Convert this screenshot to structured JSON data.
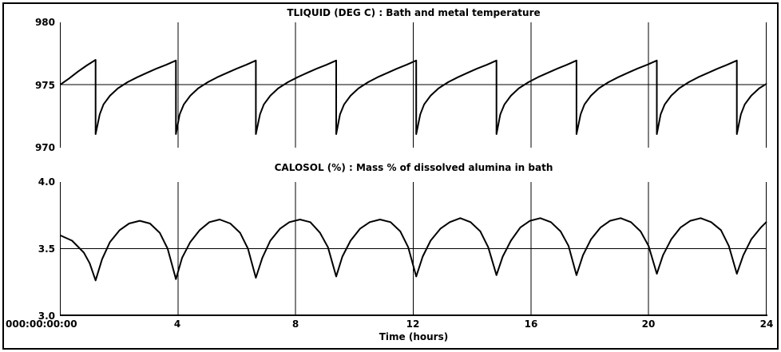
{
  "window": {
    "background": "#ffffff",
    "border_color": "#000000",
    "line_color": "#000000"
  },
  "x_axis": {
    "label": "Time (hours)",
    "origin_label": "000:00:00:00",
    "tick_labels": [
      "4",
      "8",
      "12",
      "16",
      "20",
      "24"
    ],
    "min": 0,
    "max": 24
  },
  "chart_data": [
    {
      "type": "line",
      "title": "TLIQUID (DEG C) : Bath and metal temperature",
      "xlabel": "",
      "ylabel": "TLIQUID (DEG C)",
      "xlim": [
        0,
        24
      ],
      "ylim": [
        970,
        980
      ],
      "yticks": [
        970,
        975,
        980
      ],
      "ytick_labels": [
        "980",
        "975",
        "970"
      ],
      "xticks": [
        4,
        8,
        12,
        16,
        20,
        24
      ],
      "grid_y": 975,
      "baseline": false,
      "legend": "none",
      "points": [
        [
          0,
          975
        ],
        [
          0.3,
          975.5
        ],
        [
          0.6,
          976.05
        ],
        [
          0.9,
          976.55
        ],
        [
          1.2,
          977
        ],
        [
          1.2,
          971
        ],
        [
          1.34,
          972.6
        ],
        [
          1.47,
          973.4
        ],
        [
          1.69,
          974.1
        ],
        [
          1.96,
          974.7
        ],
        [
          2.29,
          975.2
        ],
        [
          2.62,
          975.6
        ],
        [
          2.94,
          975.95
        ],
        [
          3.27,
          976.3
        ],
        [
          3.6,
          976.6
        ],
        [
          3.93,
          976.95
        ],
        [
          3.93,
          971
        ],
        [
          4.06,
          972.6
        ],
        [
          4.2,
          973.4
        ],
        [
          4.42,
          974.1
        ],
        [
          4.69,
          974.7
        ],
        [
          5.02,
          975.2
        ],
        [
          5.34,
          975.6
        ],
        [
          5.67,
          975.95
        ],
        [
          6,
          976.3
        ],
        [
          6.32,
          976.6
        ],
        [
          6.65,
          976.95
        ],
        [
          6.65,
          971
        ],
        [
          6.79,
          972.6
        ],
        [
          6.92,
          973.4
        ],
        [
          7.14,
          974.1
        ],
        [
          7.41,
          974.7
        ],
        [
          7.74,
          975.2
        ],
        [
          8.07,
          975.6
        ],
        [
          8.39,
          975.95
        ],
        [
          8.72,
          976.3
        ],
        [
          9.05,
          976.6
        ],
        [
          9.38,
          976.95
        ],
        [
          9.38,
          971
        ],
        [
          9.51,
          972.6
        ],
        [
          9.65,
          973.4
        ],
        [
          9.87,
          974.1
        ],
        [
          10.14,
          974.7
        ],
        [
          10.47,
          975.2
        ],
        [
          10.79,
          975.6
        ],
        [
          11.12,
          975.95
        ],
        [
          11.45,
          976.3
        ],
        [
          11.77,
          976.6
        ],
        [
          12.1,
          976.95
        ],
        [
          12.1,
          971
        ],
        [
          12.24,
          972.6
        ],
        [
          12.37,
          973.4
        ],
        [
          12.59,
          974.1
        ],
        [
          12.86,
          974.7
        ],
        [
          13.19,
          975.2
        ],
        [
          13.52,
          975.6
        ],
        [
          13.84,
          975.95
        ],
        [
          14.17,
          976.3
        ],
        [
          14.5,
          976.6
        ],
        [
          14.83,
          976.95
        ],
        [
          14.83,
          971
        ],
        [
          14.96,
          972.6
        ],
        [
          15.1,
          973.4
        ],
        [
          15.32,
          974.1
        ],
        [
          15.59,
          974.7
        ],
        [
          15.92,
          975.2
        ],
        [
          16.24,
          975.6
        ],
        [
          16.57,
          975.95
        ],
        [
          16.9,
          976.3
        ],
        [
          17.22,
          976.6
        ],
        [
          17.55,
          976.95
        ],
        [
          17.55,
          971
        ],
        [
          17.69,
          972.6
        ],
        [
          17.82,
          973.4
        ],
        [
          18.04,
          974.1
        ],
        [
          18.31,
          974.7
        ],
        [
          18.64,
          975.2
        ],
        [
          18.97,
          975.6
        ],
        [
          19.29,
          975.95
        ],
        [
          19.62,
          976.3
        ],
        [
          19.95,
          976.6
        ],
        [
          20.28,
          976.95
        ],
        [
          20.28,
          971
        ],
        [
          20.41,
          972.6
        ],
        [
          20.55,
          973.4
        ],
        [
          20.77,
          974.1
        ],
        [
          21.04,
          974.7
        ],
        [
          21.37,
          975.2
        ],
        [
          21.69,
          975.6
        ],
        [
          22.02,
          975.95
        ],
        [
          22.35,
          976.3
        ],
        [
          22.67,
          976.6
        ],
        [
          23,
          976.95
        ],
        [
          23,
          971
        ],
        [
          23.14,
          972.6
        ],
        [
          23.27,
          973.4
        ],
        [
          23.49,
          974.1
        ],
        [
          23.76,
          974.7
        ],
        [
          24,
          975.05
        ]
      ]
    },
    {
      "type": "line",
      "title": "CALOSOL (%) : Mass % of dissolved alumina in bath",
      "xlabel": "Time (hours)",
      "ylabel": "CALOSOL (%)",
      "xlim": [
        0,
        24
      ],
      "ylim": [
        3.0,
        4.0
      ],
      "yticks": [
        3.0,
        3.5,
        4.0
      ],
      "ytick_labels": [
        "4.0",
        "3.5",
        "3.0"
      ],
      "xticks": [
        4,
        8,
        12,
        16,
        20,
        24
      ],
      "grid_y": 3.5,
      "baseline": true,
      "legend": "none",
      "points": [
        [
          0,
          3.6
        ],
        [
          0.4,
          3.56
        ],
        [
          0.8,
          3.47
        ],
        [
          1,
          3.39
        ],
        [
          1.2,
          3.26
        ],
        [
          1.42,
          3.42
        ],
        [
          1.69,
          3.55
        ],
        [
          2.02,
          3.64
        ],
        [
          2.34,
          3.69
        ],
        [
          2.7,
          3.71
        ],
        [
          3.05,
          3.69
        ],
        [
          3.38,
          3.62
        ],
        [
          3.65,
          3.5
        ],
        [
          3.93,
          3.27
        ],
        [
          4.14,
          3.43
        ],
        [
          4.42,
          3.55
        ],
        [
          4.74,
          3.64
        ],
        [
          5.07,
          3.7
        ],
        [
          5.42,
          3.72
        ],
        [
          5.78,
          3.69
        ],
        [
          6.11,
          3.62
        ],
        [
          6.38,
          3.5
        ],
        [
          6.65,
          3.28
        ],
        [
          6.87,
          3.43
        ],
        [
          7.14,
          3.56
        ],
        [
          7.47,
          3.65
        ],
        [
          7.79,
          3.7
        ],
        [
          8.15,
          3.72
        ],
        [
          8.5,
          3.7
        ],
        [
          8.83,
          3.62
        ],
        [
          9.1,
          3.51
        ],
        [
          9.38,
          3.29
        ],
        [
          9.59,
          3.44
        ],
        [
          9.87,
          3.56
        ],
        [
          10.19,
          3.65
        ],
        [
          10.52,
          3.7
        ],
        [
          10.87,
          3.72
        ],
        [
          11.23,
          3.7
        ],
        [
          11.56,
          3.63
        ],
        [
          11.83,
          3.51
        ],
        [
          12.1,
          3.29
        ],
        [
          12.32,
          3.44
        ],
        [
          12.59,
          3.56
        ],
        [
          12.92,
          3.65
        ],
        [
          13.24,
          3.7
        ],
        [
          13.6,
          3.73
        ],
        [
          13.95,
          3.7
        ],
        [
          14.28,
          3.63
        ],
        [
          14.55,
          3.51
        ],
        [
          14.83,
          3.3
        ],
        [
          15.04,
          3.44
        ],
        [
          15.32,
          3.56
        ],
        [
          15.64,
          3.66
        ],
        [
          15.97,
          3.71
        ],
        [
          16.32,
          3.73
        ],
        [
          16.68,
          3.7
        ],
        [
          17.01,
          3.63
        ],
        [
          17.28,
          3.52
        ],
        [
          17.55,
          3.3
        ],
        [
          17.77,
          3.45
        ],
        [
          18.04,
          3.57
        ],
        [
          18.37,
          3.66
        ],
        [
          18.69,
          3.71
        ],
        [
          19.05,
          3.73
        ],
        [
          19.4,
          3.7
        ],
        [
          19.73,
          3.63
        ],
        [
          20,
          3.52
        ],
        [
          20.28,
          3.31
        ],
        [
          20.49,
          3.45
        ],
        [
          20.77,
          3.57
        ],
        [
          21.09,
          3.66
        ],
        [
          21.42,
          3.71
        ],
        [
          21.77,
          3.73
        ],
        [
          22.13,
          3.7
        ],
        [
          22.46,
          3.64
        ],
        [
          22.73,
          3.52
        ],
        [
          23,
          3.31
        ],
        [
          23.22,
          3.45
        ],
        [
          23.49,
          3.57
        ],
        [
          23.82,
          3.66
        ],
        [
          24,
          3.7
        ]
      ]
    }
  ]
}
